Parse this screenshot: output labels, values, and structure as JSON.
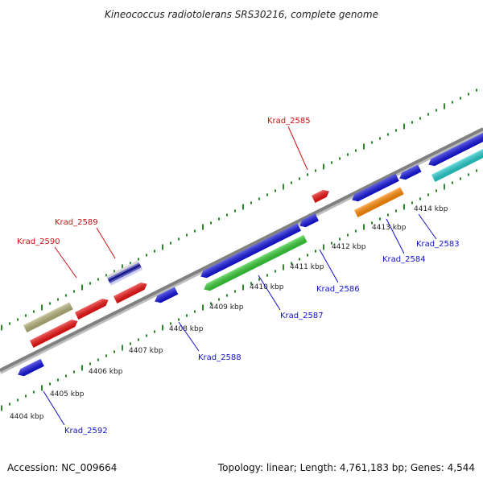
{
  "title": "Kineococcus radiotolerans SRS30216, complete genome",
  "footer": {
    "accession": "Accession: NC_009664",
    "summary": "Topology: linear; Length: 4,761,183 bp; Genes: 4,544"
  },
  "colors": {
    "backbone": "#808080",
    "tick_track": "#2a8a2a",
    "label_forward": "#cc1111",
    "label_reverse": "#1111cc"
  },
  "scale": {
    "ticks": [
      "4404 kbp",
      "4405 kbp",
      "4406 kbp",
      "4407 kbp",
      "4408 kbp",
      "4409 kbp",
      "4410 kbp",
      "4411 kbp",
      "4412 kbp",
      "4413 kbp",
      "4414 kbp"
    ]
  },
  "gene_labels": [
    {
      "name": "Krad_2585",
      "strand": "forward"
    },
    {
      "name": "Krad_2589",
      "strand": "forward"
    },
    {
      "name": "Krad_2590",
      "strand": "forward"
    },
    {
      "name": "Krad_2583",
      "strand": "reverse"
    },
    {
      "name": "Krad_2584",
      "strand": "reverse"
    },
    {
      "name": "Krad_2586",
      "strand": "reverse"
    },
    {
      "name": "Krad_2587",
      "strand": "reverse"
    },
    {
      "name": "Krad_2588",
      "strand": "reverse"
    },
    {
      "name": "Krad_2592",
      "strand": "reverse"
    }
  ],
  "features": [
    {
      "id": "tan-forward",
      "color": "#b5b07a"
    },
    {
      "id": "red-forward-1",
      "color": "#ee1111"
    },
    {
      "id": "red-forward-2",
      "color": "#ee1111"
    },
    {
      "id": "striped-forward",
      "color": "#1a1a8a"
    },
    {
      "id": "red-forward-3",
      "color": "#ee1111"
    },
    {
      "id": "red-forward-krad-2585",
      "color": "#ee1111"
    },
    {
      "id": "blue-reverse-krad-2592",
      "color": "#1111dd"
    },
    {
      "id": "blue-reverse-krad-2588",
      "color": "#1111dd"
    },
    {
      "id": "blue-reverse-large",
      "color": "#1111dd"
    },
    {
      "id": "green-reverse-krad-2587",
      "color": "#33cc33"
    },
    {
      "id": "blue-reverse-krad-2586",
      "color": "#1111dd"
    },
    {
      "id": "blue-reverse-right-1",
      "color": "#1111dd"
    },
    {
      "id": "blue-reverse-right-2",
      "color": "#1111dd"
    },
    {
      "id": "orange-reverse-krad-2584",
      "color": "#ff8800"
    },
    {
      "id": "blue-reverse-far-right",
      "color": "#1111dd"
    },
    {
      "id": "cyan-reverse-krad-2583",
      "color": "#22cccc"
    }
  ]
}
